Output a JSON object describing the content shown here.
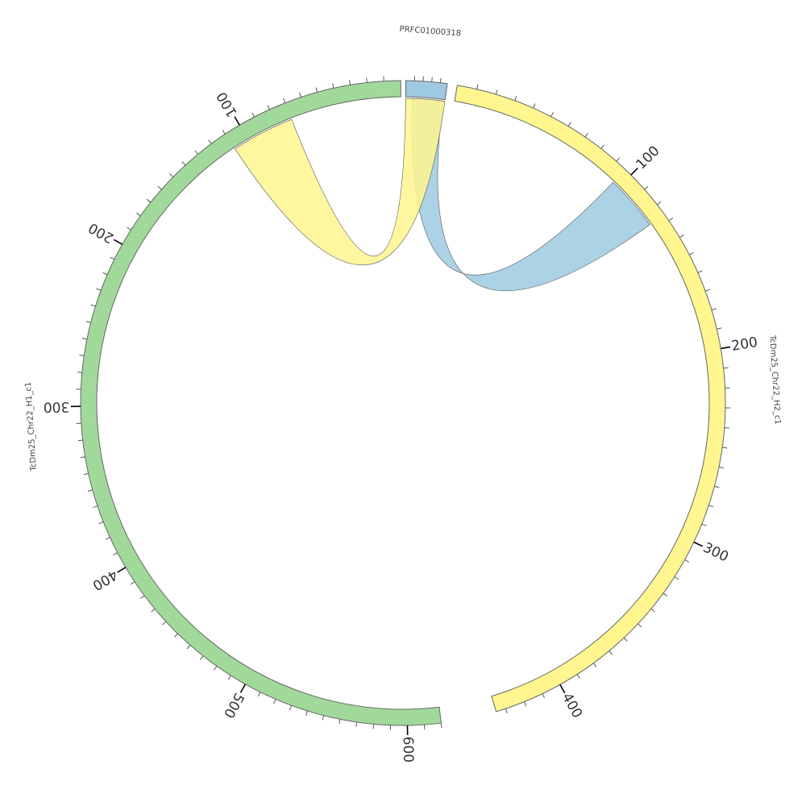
{
  "diagram": {
    "type": "circos",
    "tick_step": 10,
    "label_step": 100,
    "sequences": [
      {
        "id": "prfc",
        "name": "PRFC01000318",
        "length": 48,
        "color": "#9ecae1",
        "start_deg": 0.5,
        "end_deg": 7.9,
        "reversed": false,
        "labels": []
      },
      {
        "id": "h2",
        "name": "TcDm25_Chr22_H2_c1",
        "length": 435,
        "color": "#fff68f",
        "start_deg": 9.7,
        "end_deg": 163.2,
        "reversed": false,
        "labels": [
          "100",
          "200",
          "300",
          "400"
        ]
      },
      {
        "id": "h1",
        "name": "TcDm25_Chr22_H1_c1",
        "length": 620,
        "color": "#a1d99b",
        "start_deg": 173.2,
        "end_deg": 359.6,
        "reversed": true,
        "labels": [
          "100",
          "200",
          "300",
          "400",
          "500",
          "600"
        ]
      }
    ],
    "links": [
      {
        "name": "link-prfc-h2",
        "color": "#9ecae1",
        "from": {
          "seq": "prfc",
          "start": 8,
          "end": 46
        },
        "to": {
          "seq": "h2",
          "start": 96,
          "end": 126
        }
      },
      {
        "name": "link-prfc-h1",
        "color": "#fff68f",
        "from": {
          "seq": "prfc",
          "start": 0,
          "end": 48
        },
        "to": {
          "seq": "h1",
          "start": 70,
          "end": 110
        }
      }
    ]
  }
}
